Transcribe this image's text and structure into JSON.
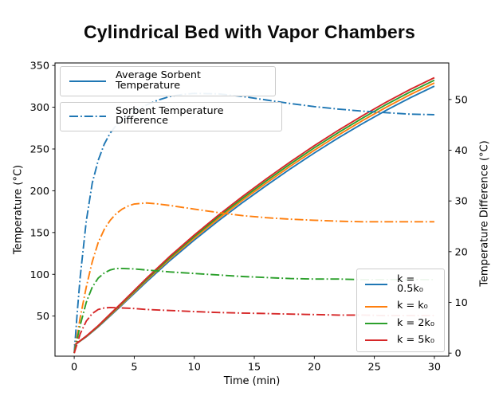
{
  "chart_data": {
    "type": "line",
    "title": "Cylindrical Bed with Vapor Chambers",
    "xlabel": "Time (min)",
    "ylabel_left": "Temperature (°C)",
    "ylabel_right": "Temperature Difference (°C)",
    "xlim": [
      -1.6,
      31.2
    ],
    "ylim_left": [
      2,
      353
    ],
    "ylim_right": [
      -0.6,
      57.2
    ],
    "xticks": [
      0,
      5,
      10,
      15,
      20,
      25,
      30
    ],
    "yticks_left": [
      50,
      100,
      150,
      200,
      250,
      300,
      350
    ],
    "yticks_right": [
      0,
      10,
      20,
      30,
      40,
      50
    ],
    "grid": false,
    "legend_line_types": [
      {
        "label": "Average Sorbent Temperature",
        "style": "solid",
        "color": "#1f77b4"
      },
      {
        "label": "Sorbent Temperature Difference",
        "style": "dashdot",
        "color": "#1f77b4"
      }
    ],
    "legend_k": [
      {
        "label": "k = 0.5k₀",
        "color": "#1f77b4"
      },
      {
        "label": "k = k₀",
        "color": "#ff7f0e"
      },
      {
        "label": "k = 2k₀",
        "color": "#2ca02c"
      },
      {
        "label": "k = 5k₀",
        "color": "#d62728"
      }
    ],
    "series": [
      {
        "name": "avg-temp-k0.5",
        "axis": "left",
        "style": "solid",
        "color": "#1f77b4",
        "points": [
          [
            0,
            15
          ],
          [
            1,
            25.2
          ],
          [
            2,
            37
          ],
          [
            4,
            63.5
          ],
          [
            6,
            90.8
          ],
          [
            8,
            116.8
          ],
          [
            10,
            141
          ],
          [
            12,
            163.9
          ],
          [
            14,
            185.7
          ],
          [
            16,
            206.3
          ],
          [
            18,
            226.2
          ],
          [
            20,
            245.2
          ],
          [
            22,
            263.2
          ],
          [
            24,
            280.3
          ],
          [
            26,
            296.4
          ],
          [
            28,
            311.4
          ],
          [
            30,
            325.2
          ]
        ]
      },
      {
        "name": "avg-temp-k1",
        "axis": "left",
        "style": "solid",
        "color": "#ff7f0e",
        "points": [
          [
            0,
            15
          ],
          [
            1,
            25.5
          ],
          [
            2,
            37.6
          ],
          [
            4,
            64.6
          ],
          [
            6,
            92.4
          ],
          [
            8,
            118.8
          ],
          [
            10,
            143.3
          ],
          [
            12,
            166.4
          ],
          [
            14,
            188.5
          ],
          [
            16,
            209.3
          ],
          [
            18,
            229.4
          ],
          [
            20,
            248.5
          ],
          [
            22,
            266.7
          ],
          [
            24,
            283.9
          ],
          [
            26,
            300.1
          ],
          [
            28,
            315.2
          ],
          [
            30,
            329.1
          ]
        ]
      },
      {
        "name": "avg-temp-k2",
        "axis": "left",
        "style": "solid",
        "color": "#2ca02c",
        "points": [
          [
            0,
            15
          ],
          [
            1,
            25.8
          ],
          [
            2,
            38.1
          ],
          [
            4,
            65.6
          ],
          [
            6,
            93.7
          ],
          [
            8,
            120.4
          ],
          [
            10,
            145.2
          ],
          [
            12,
            168.6
          ],
          [
            14,
            190.8
          ],
          [
            16,
            211.8
          ],
          [
            18,
            232.1
          ],
          [
            20,
            251.4
          ],
          [
            22,
            269.6
          ],
          [
            24,
            286.9
          ],
          [
            26,
            303.3
          ],
          [
            28,
            318.4
          ],
          [
            30,
            332.3
          ]
        ]
      },
      {
        "name": "avg-temp-k5",
        "axis": "left",
        "style": "solid",
        "color": "#d62728",
        "points": [
          [
            0,
            15
          ],
          [
            1,
            26
          ],
          [
            2,
            38.5
          ],
          [
            4,
            66.5
          ],
          [
            6,
            95
          ],
          [
            8,
            122
          ],
          [
            10,
            147
          ],
          [
            12,
            170.6
          ],
          [
            14,
            193
          ],
          [
            16,
            214.2
          ],
          [
            18,
            234.6
          ],
          [
            20,
            254
          ],
          [
            22,
            272.4
          ],
          [
            24,
            289.8
          ],
          [
            26,
            306.2
          ],
          [
            28,
            321.4
          ],
          [
            30,
            335.4
          ]
        ]
      },
      {
        "name": "temp-diff-k0.5",
        "axis": "right",
        "style": "dashdot",
        "color": "#1f77b4",
        "points": [
          [
            0,
            0
          ],
          [
            0.25,
            8
          ],
          [
            0.5,
            15
          ],
          [
            1,
            26
          ],
          [
            1.5,
            33.5
          ],
          [
            2,
            38
          ],
          [
            2.5,
            41.2
          ],
          [
            3,
            43.4
          ],
          [
            3.5,
            44.9
          ],
          [
            4,
            46
          ],
          [
            5,
            47.7
          ],
          [
            6,
            48.9
          ],
          [
            7,
            49.9
          ],
          [
            8,
            50.6
          ],
          [
            9,
            51
          ],
          [
            10,
            51.2
          ],
          [
            12,
            51.1
          ],
          [
            14,
            50.6
          ],
          [
            16,
            49.9
          ],
          [
            18,
            49.2
          ],
          [
            20,
            48.6
          ],
          [
            22,
            48.1
          ],
          [
            24,
            47.7
          ],
          [
            26,
            47.4
          ],
          [
            28,
            47.1
          ],
          [
            30,
            47
          ]
        ]
      },
      {
        "name": "temp-diff-k1",
        "axis": "right",
        "style": "dashdot",
        "color": "#ff7f0e",
        "points": [
          [
            0,
            0
          ],
          [
            0.5,
            7
          ],
          [
            1,
            13
          ],
          [
            1.5,
            18
          ],
          [
            2,
            21.8
          ],
          [
            2.5,
            24.4
          ],
          [
            3,
            26.2
          ],
          [
            3.5,
            27.5
          ],
          [
            4,
            28.4
          ],
          [
            4.5,
            29
          ],
          [
            5,
            29.4
          ],
          [
            6,
            29.6
          ],
          [
            7,
            29.4
          ],
          [
            8,
            29.1
          ],
          [
            10,
            28.4
          ],
          [
            12,
            27.7
          ],
          [
            14,
            27.1
          ],
          [
            16,
            26.7
          ],
          [
            18,
            26.4
          ],
          [
            20,
            26.2
          ],
          [
            22,
            26
          ],
          [
            24,
            25.9
          ],
          [
            26,
            25.9
          ],
          [
            28,
            25.9
          ],
          [
            30,
            25.9
          ]
        ]
      },
      {
        "name": "temp-diff-k2",
        "axis": "right",
        "style": "dashdot",
        "color": "#2ca02c",
        "points": [
          [
            0,
            0
          ],
          [
            0.5,
            5.5
          ],
          [
            1,
            10
          ],
          [
            1.5,
            13
          ],
          [
            2,
            14.8
          ],
          [
            2.5,
            15.8
          ],
          [
            3,
            16.4
          ],
          [
            3.5,
            16.7
          ],
          [
            4,
            16.7
          ],
          [
            5,
            16.6
          ],
          [
            6,
            16.4
          ],
          [
            8,
            16
          ],
          [
            10,
            15.7
          ],
          [
            12,
            15.4
          ],
          [
            14,
            15.1
          ],
          [
            16,
            14.9
          ],
          [
            18,
            14.7
          ],
          [
            20,
            14.6
          ],
          [
            22,
            14.6
          ],
          [
            24,
            14.5
          ],
          [
            26,
            14.5
          ],
          [
            28,
            14.5
          ],
          [
            30,
            14.5
          ]
        ]
      },
      {
        "name": "temp-diff-k5",
        "axis": "right",
        "style": "dashdot",
        "color": "#d62728",
        "points": [
          [
            0,
            0
          ],
          [
            0.5,
            3.8
          ],
          [
            1,
            6.3
          ],
          [
            1.5,
            7.8
          ],
          [
            2,
            8.6
          ],
          [
            2.5,
            8.9
          ],
          [
            3,
            9
          ],
          [
            4,
            8.9
          ],
          [
            5,
            8.8
          ],
          [
            6,
            8.6
          ],
          [
            8,
            8.4
          ],
          [
            10,
            8.2
          ],
          [
            12,
            8
          ],
          [
            14,
            7.9
          ],
          [
            16,
            7.8
          ],
          [
            18,
            7.7
          ],
          [
            20,
            7.6
          ],
          [
            22,
            7.5
          ],
          [
            24,
            7.5
          ],
          [
            26,
            7.4
          ],
          [
            28,
            7.4
          ],
          [
            30,
            7.4
          ]
        ]
      }
    ]
  }
}
